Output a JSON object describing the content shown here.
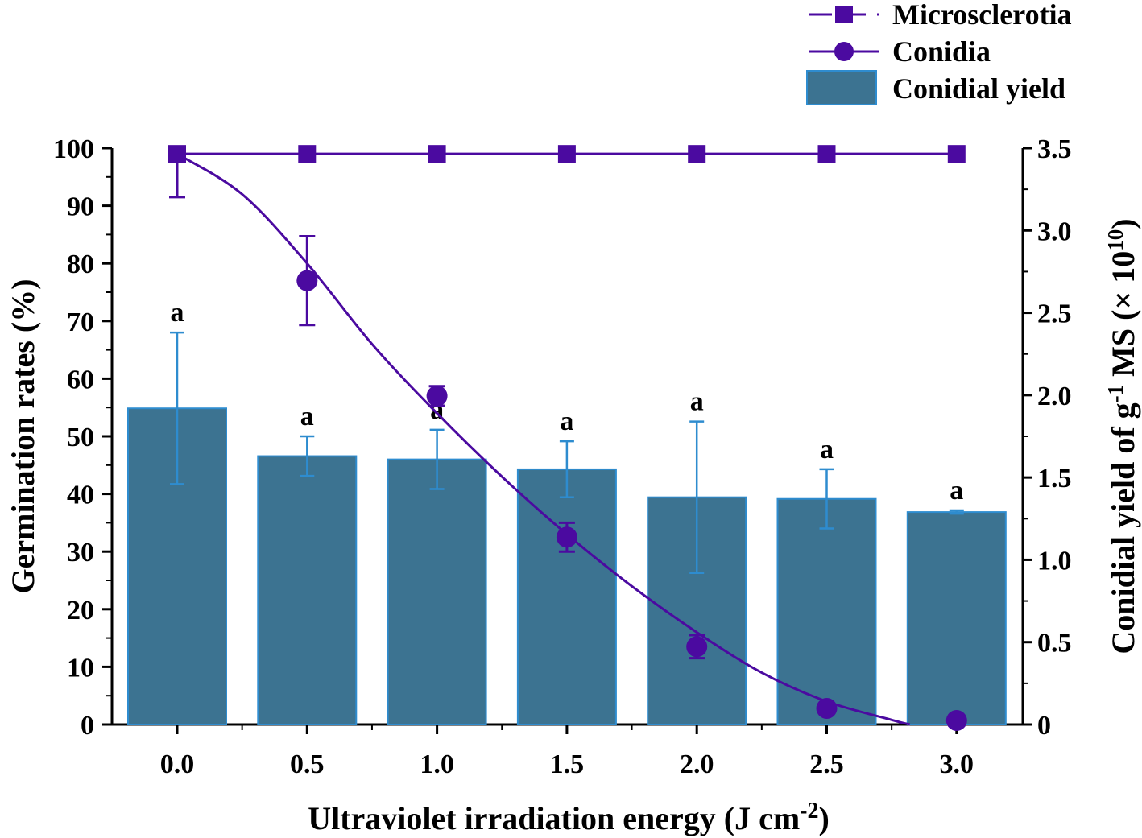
{
  "chart_data": {
    "type": "bar",
    "x": [
      "0.0",
      "0.5",
      "1.0",
      "1.5",
      "2.0",
      "2.5",
      "3.0"
    ],
    "xlabel": {
      "main": "Ultraviolet irradiation energy (J cm",
      "sup": "-2",
      "end": ")"
    },
    "ylabel_left": "Germination rates (%)",
    "ylabel_right": {
      "main": "Conidial yield of g",
      "sup1": "-1",
      "mid": " MS (× 10",
      "sup2": "10",
      "end": ")"
    },
    "ylim_left": [
      0,
      100
    ],
    "ylim_right": [
      0,
      3.5
    ],
    "yticks_left": [
      "0",
      "10",
      "20",
      "30",
      "40",
      "50",
      "60",
      "70",
      "80",
      "90",
      "100"
    ],
    "yticks_right": [
      "0",
      "0.5",
      "1.0",
      "1.5",
      "2.0",
      "2.5",
      "3.0",
      "3.5"
    ],
    "series": [
      {
        "name": "Conidial yield",
        "kind": "bar",
        "axis": "right",
        "values": [
          1.92,
          1.63,
          1.61,
          1.55,
          1.38,
          1.37,
          1.29
        ],
        "errors": [
          0.46,
          0.12,
          0.18,
          0.17,
          0.46,
          0.18,
          0.01
        ],
        "labels": [
          "a",
          "a",
          "a",
          "a",
          "a",
          "a",
          "a"
        ],
        "color": "#3c7391",
        "edge": "#2e8ccf",
        "error_color": "#2e8ccf"
      },
      {
        "name": "Microsclerotia",
        "kind": "line-square",
        "axis": "left",
        "values": [
          99,
          99,
          99,
          99,
          99,
          99,
          99
        ],
        "color": "#4b0aa0"
      },
      {
        "name": "Conidia",
        "kind": "scatter-circle",
        "axis": "left",
        "values": [
          99,
          77,
          57,
          32.5,
          13.5,
          2.8,
          0.7
        ],
        "errors": [
          7.5,
          7.7,
          1.7,
          2.5,
          2.0,
          0,
          0
        ],
        "fit_curve": {
          "x": [
            0,
            0.25,
            0.5,
            0.75,
            1.0,
            1.25,
            1.5,
            1.75,
            2.0,
            2.25,
            2.5,
            2.75,
            2.82
          ],
          "y": [
            99,
            92,
            80,
            66,
            54,
            43,
            33,
            24,
            16,
            9,
            4,
            0.8,
            0
          ]
        },
        "color": "#4b0aa0"
      }
    ],
    "legend": {
      "position": "top-right",
      "entries": [
        "Microsclerotia",
        "Conidia",
        "Conidial yield"
      ]
    }
  }
}
